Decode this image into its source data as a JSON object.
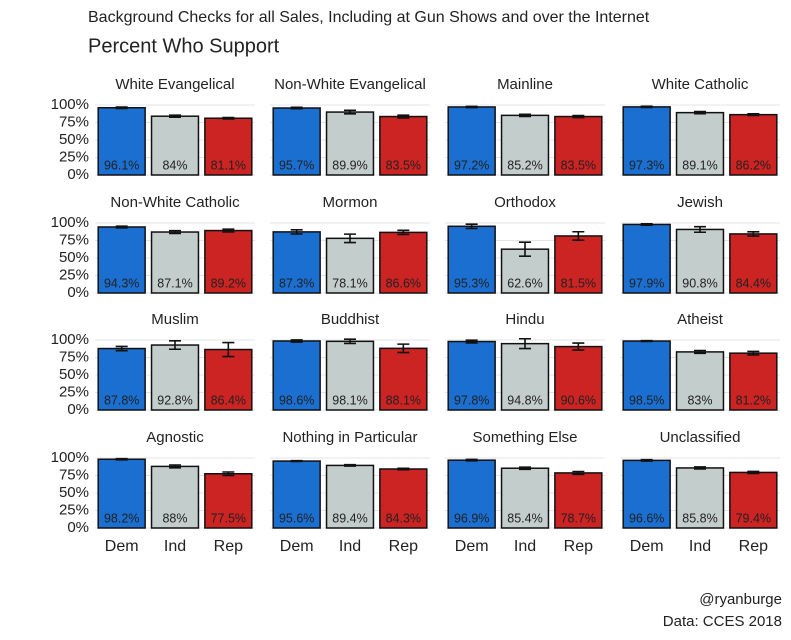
{
  "title": "Background Checks for all Sales, Including at Gun Shows and over the Internet",
  "subtitle": "Percent Who Support",
  "credits": [
    "@ryanburge",
    "Data: CCES 2018"
  ],
  "chart_data": {
    "type": "bar",
    "categories": [
      "Dem",
      "Ind",
      "Rep"
    ],
    "colors": [
      "#1a6fd0",
      "#c3cdcc",
      "#cc2323"
    ],
    "ylim": [
      0,
      100
    ],
    "yticks": [
      {
        "value": 0,
        "label": "0%"
      },
      {
        "value": 25,
        "label": "25%"
      },
      {
        "value": 50,
        "label": "50%"
      },
      {
        "value": 75,
        "label": "75%"
      },
      {
        "value": 100,
        "label": "100%"
      }
    ],
    "grid": true,
    "facets": [
      {
        "title": "White Evangelical",
        "values": [
          96.1,
          84,
          81.1
        ],
        "value_labels": [
          "96.1%",
          "84%",
          "81.1%"
        ],
        "errors": [
          1,
          1.5,
          1
        ]
      },
      {
        "title": "Non-White Evangelical",
        "values": [
          95.7,
          89.9,
          83.5
        ],
        "value_labels": [
          "95.7%",
          "89.9%",
          "83.5%"
        ],
        "errors": [
          1,
          2.5,
          2
        ]
      },
      {
        "title": "Mainline",
        "values": [
          97.2,
          85.2,
          83.5
        ],
        "value_labels": [
          "97.2%",
          "85.2%",
          "83.5%"
        ],
        "errors": [
          0.8,
          1.5,
          1.5
        ]
      },
      {
        "title": "White Catholic",
        "values": [
          97.3,
          89.1,
          86.2
        ],
        "value_labels": [
          "97.3%",
          "89.1%",
          "86.2%"
        ],
        "errors": [
          0.8,
          1.5,
          1.2
        ]
      },
      {
        "title": "Non-White Catholic",
        "values": [
          94.3,
          87.1,
          89.2
        ],
        "value_labels": [
          "94.3%",
          "87.1%",
          "89.2%"
        ],
        "errors": [
          1.2,
          2,
          2
        ]
      },
      {
        "title": "Mormon",
        "values": [
          87.3,
          78.1,
          86.6
        ],
        "value_labels": [
          "87.3%",
          "78.1%",
          "86.6%"
        ],
        "errors": [
          3,
          6,
          3
        ]
      },
      {
        "title": "Orthodox",
        "values": [
          95.3,
          62.6,
          81.5
        ],
        "value_labels": [
          "95.3%",
          "62.6%",
          "81.5%"
        ],
        "errors": [
          3,
          10,
          6
        ]
      },
      {
        "title": "Jewish",
        "values": [
          97.9,
          90.8,
          84.4
        ],
        "value_labels": [
          "97.9%",
          "90.8%",
          "84.4%"
        ],
        "errors": [
          1,
          4,
          3
        ]
      },
      {
        "title": "Muslim",
        "values": [
          87.8,
          92.8,
          86.4
        ],
        "value_labels": [
          "87.8%",
          "92.8%",
          "86.4%"
        ],
        "errors": [
          3,
          6,
          10
        ]
      },
      {
        "title": "Buddhist",
        "values": [
          98.6,
          98.1,
          88.1
        ],
        "value_labels": [
          "98.6%",
          "98.1%",
          "88.1%"
        ],
        "errors": [
          1.5,
          3,
          6
        ]
      },
      {
        "title": "Hindu",
        "values": [
          97.8,
          94.8,
          90.6
        ],
        "value_labels": [
          "97.8%",
          "94.8%",
          "90.6%"
        ],
        "errors": [
          2,
          7,
          5
        ]
      },
      {
        "title": "Atheist",
        "values": [
          98.5,
          83,
          81.2
        ],
        "value_labels": [
          "98.5%",
          "83%",
          "81.2%"
        ],
        "errors": [
          0.5,
          2,
          2.5
        ]
      },
      {
        "title": "Agnostic",
        "values": [
          98.2,
          88,
          77.5
        ],
        "value_labels": [
          "98.2%",
          "88%",
          "77.5%"
        ],
        "errors": [
          0.8,
          2,
          2.5
        ]
      },
      {
        "title": "Nothing in Particular",
        "values": [
          95.6,
          89.4,
          84.3
        ],
        "value_labels": [
          "95.6%",
          "89.4%",
          "84.3%"
        ],
        "errors": [
          0.5,
          1,
          1
        ]
      },
      {
        "title": "Something Else",
        "values": [
          96.9,
          85.4,
          78.7
        ],
        "value_labels": [
          "96.9%",
          "85.4%",
          "78.7%"
        ],
        "errors": [
          1,
          1.5,
          2
        ]
      },
      {
        "title": "Unclassified",
        "values": [
          96.6,
          85.8,
          79.4
        ],
        "value_labels": [
          "96.6%",
          "85.8%",
          "79.4%"
        ],
        "errors": [
          1,
          1.5,
          1.5
        ]
      }
    ]
  }
}
